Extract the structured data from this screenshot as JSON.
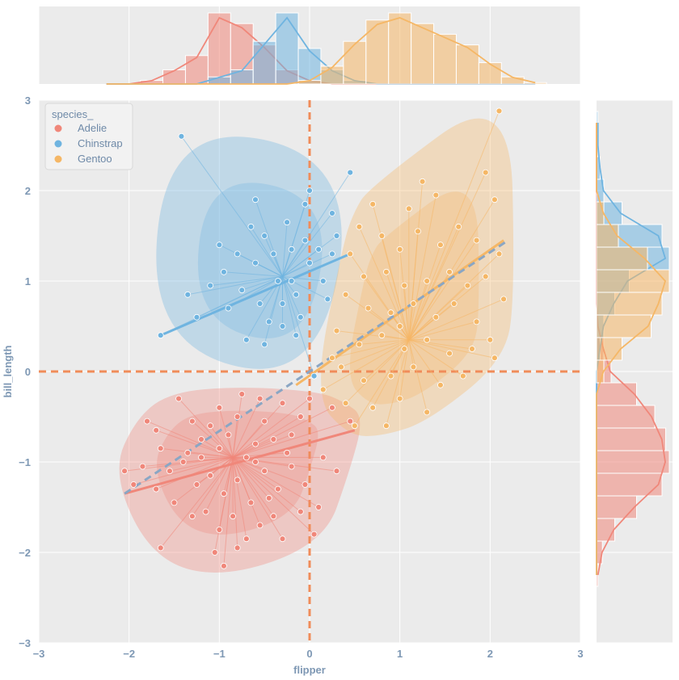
{
  "chart_data": {
    "type": "scatter",
    "xlabel": "flipper",
    "ylabel": "bill_length",
    "xlim": [
      -3,
      3
    ],
    "ylim": [
      -3,
      3
    ],
    "x_ticks": [
      "−3",
      "−2",
      "−1",
      "0",
      "1",
      "2",
      "3"
    ],
    "y_ticks": [
      "−3",
      "−2",
      "−1",
      "0",
      "1",
      "2",
      "3"
    ],
    "grid": true,
    "reference_lines": {
      "x": 0,
      "y": 0,
      "style": "dashed",
      "color": "#f08c5a"
    },
    "legend": {
      "title": "species_",
      "position": "top-left",
      "entries": [
        "Adelie",
        "Chinstrap",
        "Gentoo"
      ]
    },
    "colors": {
      "Adelie": "#f0877a",
      "Chinstrap": "#6fb4e0",
      "Gentoo": "#f5b766",
      "overall_fit": "#8aa6c4",
      "panel_bg": "#ebebeb"
    },
    "series": [
      {
        "name": "Adelie",
        "centroid": [
          -0.85,
          -0.95
        ],
        "fit": {
          "x": [
            -2.05,
            0.5
          ],
          "y": [
            -1.35,
            -0.65
          ]
        },
        "points": [
          [
            -1.45,
            -0.3
          ],
          [
            -1.3,
            -0.55
          ],
          [
            -1.2,
            -0.75
          ],
          [
            -1.1,
            -0.6
          ],
          [
            -1.0,
            -0.85
          ],
          [
            -0.9,
            -0.7
          ],
          [
            -0.8,
            -0.5
          ],
          [
            -0.7,
            -0.95
          ],
          [
            -0.6,
            -0.8
          ],
          [
            -0.5,
            -0.55
          ],
          [
            -0.4,
            -0.75
          ],
          [
            -0.3,
            -0.35
          ],
          [
            -0.2,
            -0.7
          ],
          [
            -0.1,
            -0.5
          ],
          [
            0.0,
            -0.3
          ],
          [
            0.25,
            -0.4
          ],
          [
            0.45,
            -0.55
          ],
          [
            -1.65,
            -0.85
          ],
          [
            -1.55,
            -1.1
          ],
          [
            -1.4,
            -1.0
          ],
          [
            -1.25,
            -1.25
          ],
          [
            -1.1,
            -1.15
          ],
          [
            -0.95,
            -1.35
          ],
          [
            -0.8,
            -1.2
          ],
          [
            -0.65,
            -1.45
          ],
          [
            -0.5,
            -1.1
          ],
          [
            -0.35,
            -1.3
          ],
          [
            -0.2,
            -1.05
          ],
          [
            -0.05,
            -1.25
          ],
          [
            0.15,
            -0.95
          ],
          [
            0.3,
            -1.1
          ],
          [
            -1.85,
            -1.05
          ],
          [
            -2.05,
            -1.1
          ],
          [
            -1.95,
            -1.25
          ],
          [
            -1.7,
            -1.3
          ],
          [
            -1.5,
            -1.45
          ],
          [
            -1.3,
            -1.6
          ],
          [
            -1.15,
            -1.55
          ],
          [
            -1.0,
            -1.75
          ],
          [
            -0.85,
            -1.6
          ],
          [
            -0.7,
            -1.85
          ],
          [
            -0.55,
            -1.7
          ],
          [
            -0.4,
            -1.6
          ],
          [
            -0.3,
            -1.85
          ],
          [
            -0.1,
            -1.55
          ],
          [
            0.1,
            -1.5
          ],
          [
            0.05,
            -1.8
          ],
          [
            -1.65,
            -1.95
          ],
          [
            -1.05,
            -2.0
          ],
          [
            -0.95,
            -2.15
          ],
          [
            -0.8,
            -1.95
          ],
          [
            -1.35,
            -0.9
          ],
          [
            -0.6,
            -1.0
          ],
          [
            -0.25,
            -0.9
          ],
          [
            -0.45,
            -1.4
          ],
          [
            -1.2,
            -0.95
          ],
          [
            -1.7,
            -0.65
          ],
          [
            -1.8,
            -0.55
          ],
          [
            -1.0,
            -0.4
          ],
          [
            -0.75,
            -0.25
          ],
          [
            -0.55,
            -0.3
          ]
        ]
      },
      {
        "name": "Chinstrap",
        "centroid": [
          -0.3,
          1.05
        ],
        "fit": {
          "x": [
            -1.65,
            0.45
          ],
          "y": [
            0.4,
            1.3
          ]
        },
        "points": [
          [
            -1.42,
            2.6
          ],
          [
            0.45,
            2.2
          ],
          [
            0.0,
            2.0
          ],
          [
            -0.05,
            1.85
          ],
          [
            0.25,
            1.75
          ],
          [
            -0.6,
            1.9
          ],
          [
            -1.0,
            1.4
          ],
          [
            -1.35,
            0.85
          ],
          [
            -1.65,
            0.4
          ],
          [
            -1.25,
            0.6
          ],
          [
            -0.95,
            1.1
          ],
          [
            -0.8,
            1.3
          ],
          [
            -0.75,
            0.9
          ],
          [
            -0.6,
            1.2
          ],
          [
            -0.55,
            0.75
          ],
          [
            -0.5,
            1.5
          ],
          [
            -0.45,
            0.55
          ],
          [
            -0.4,
            1.3
          ],
          [
            -0.35,
            1.0
          ],
          [
            -0.3,
            0.75
          ],
          [
            -0.25,
            1.65
          ],
          [
            -0.2,
            1.35
          ],
          [
            -0.15,
            0.85
          ],
          [
            -0.1,
            0.6
          ],
          [
            -0.05,
            1.45
          ],
          [
            0.0,
            1.2
          ],
          [
            0.1,
            1.35
          ],
          [
            0.15,
            1.0
          ],
          [
            0.2,
            0.8
          ],
          [
            0.25,
            1.3
          ],
          [
            0.05,
            -0.05
          ],
          [
            -0.7,
            0.35
          ],
          [
            -0.5,
            0.3
          ],
          [
            -0.3,
            0.5
          ],
          [
            -0.15,
            0.4
          ],
          [
            -0.9,
            0.7
          ],
          [
            -1.1,
            0.95
          ],
          [
            -0.65,
            1.6
          ],
          [
            0.3,
            1.5
          ],
          [
            -0.2,
            1.0
          ]
        ]
      },
      {
        "name": "Gentoo",
        "centroid": [
          1.1,
          0.35
        ],
        "fit": {
          "x": [
            -0.15,
            2.15
          ],
          "y": [
            -0.15,
            1.45
          ]
        },
        "points": [
          [
            2.1,
            2.88
          ],
          [
            1.95,
            2.2
          ],
          [
            2.05,
            1.9
          ],
          [
            1.4,
            1.95
          ],
          [
            1.25,
            2.1
          ],
          [
            1.1,
            1.8
          ],
          [
            0.7,
            1.85
          ],
          [
            0.55,
            1.6
          ],
          [
            0.8,
            1.5
          ],
          [
            1.0,
            1.35
          ],
          [
            1.2,
            1.55
          ],
          [
            1.45,
            1.4
          ],
          [
            1.65,
            1.6
          ],
          [
            1.85,
            1.45
          ],
          [
            2.1,
            1.3
          ],
          [
            0.45,
            1.3
          ],
          [
            0.6,
            1.05
          ],
          [
            0.85,
            1.1
          ],
          [
            1.05,
            0.95
          ],
          [
            1.3,
            1.0
          ],
          [
            1.55,
            1.1
          ],
          [
            1.75,
            0.95
          ],
          [
            1.95,
            1.05
          ],
          [
            2.15,
            0.8
          ],
          [
            0.4,
            0.85
          ],
          [
            0.65,
            0.7
          ],
          [
            0.9,
            0.65
          ],
          [
            1.15,
            0.75
          ],
          [
            1.4,
            0.6
          ],
          [
            1.6,
            0.75
          ],
          [
            1.85,
            0.55
          ],
          [
            2.0,
            0.35
          ],
          [
            0.3,
            0.45
          ],
          [
            0.55,
            0.3
          ],
          [
            0.8,
            0.4
          ],
          [
            1.05,
            0.25
          ],
          [
            1.3,
            0.35
          ],
          [
            1.55,
            0.2
          ],
          [
            1.8,
            0.25
          ],
          [
            2.05,
            0.15
          ],
          [
            0.35,
            0.05
          ],
          [
            0.6,
            -0.1
          ],
          [
            0.9,
            -0.05
          ],
          [
            1.15,
            0.05
          ],
          [
            1.45,
            -0.15
          ],
          [
            1.7,
            -0.05
          ],
          [
            0.4,
            -0.35
          ],
          [
            0.7,
            -0.4
          ],
          [
            1.0,
            -0.3
          ],
          [
            1.3,
            -0.45
          ],
          [
            0.5,
            -0.6
          ],
          [
            0.85,
            -0.6
          ],
          [
            0.15,
            -0.2
          ],
          [
            0.25,
            0.15
          ],
          [
            1.0,
            0.5
          ]
        ]
      }
    ],
    "marginal_top": {
      "x": [
        -2.25,
        -2.0,
        -1.75,
        -1.5,
        -1.25,
        -1.0,
        -0.75,
        -0.5,
        -0.25,
        0.0,
        0.25,
        0.5,
        0.75,
        1.0,
        1.25,
        1.5,
        1.75,
        2.0,
        2.25,
        2.5
      ],
      "Adelie": [
        0,
        0,
        0.05,
        0.2,
        0.4,
        1.0,
        0.85,
        0.55,
        0.2,
        0.05,
        0,
        0,
        0,
        0,
        0,
        0,
        0,
        0,
        0,
        0
      ],
      "Chinstrap": [
        0,
        0,
        0,
        0,
        0,
        0.1,
        0.2,
        0.6,
        1.0,
        0.5,
        0.2,
        0.05,
        0,
        0,
        0,
        0,
        0,
        0,
        0,
        0
      ],
      "Gentoo": [
        0,
        0,
        0,
        0,
        0,
        0,
        0,
        0,
        0,
        0.05,
        0.25,
        0.6,
        0.9,
        1.0,
        0.85,
        0.7,
        0.55,
        0.3,
        0.1,
        0.02
      ]
    },
    "marginal_right": {
      "y": [
        2.75,
        2.5,
        2.25,
        2.0,
        1.75,
        1.5,
        1.25,
        1.0,
        0.75,
        0.5,
        0.25,
        0.0,
        -0.25,
        -0.5,
        -0.75,
        -1.0,
        -1.25,
        -1.5,
        -1.75,
        -2.0,
        -2.25
      ],
      "Adelie": [
        0,
        0,
        0,
        0,
        0,
        0,
        0,
        0,
        0,
        0.02,
        0.1,
        0.2,
        0.55,
        0.8,
        0.95,
        1.0,
        0.9,
        0.55,
        0.25,
        0.08,
        0.02
      ],
      "Chinstrap": [
        0.02,
        0.02,
        0.05,
        0.1,
        0.35,
        0.9,
        1.0,
        0.45,
        0.25,
        0.1,
        0.05,
        0,
        0,
        0,
        0,
        0,
        0,
        0,
        0,
        0,
        0
      ],
      "Gentoo": [
        0,
        0,
        0,
        0,
        0.1,
        0.3,
        0.7,
        1.0,
        0.9,
        0.75,
        0.35,
        0.1,
        0,
        0,
        0,
        0,
        0,
        0,
        0,
        0,
        0
      ]
    }
  }
}
